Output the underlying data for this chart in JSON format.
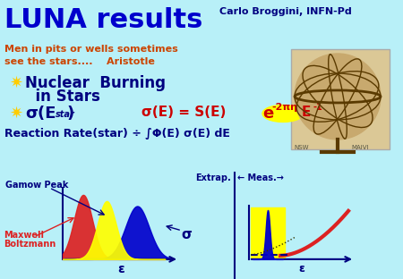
{
  "bg_color": "#b8f0f8",
  "title": "LUNA results",
  "title_color": "#0000cc",
  "subtitle1": "Men in pits or wells sometimes",
  "subtitle2": "see the stars....    Aristotle",
  "subtitle_color": "#cc4400",
  "author": "Carlo Broggini, INFN-Pd",
  "author_color": "#000080",
  "bullet_color": "#000080",
  "formula_color": "#cc0000",
  "gamow_label": "Gamow Peak",
  "maxwell_label": "Maxwell\nBoltzmann",
  "sigma_label": "σ",
  "epsilon_label": "ε",
  "extrap_label": "Extrap.",
  "meas_label": "← Meas.→",
  "star_bullet": "✷",
  "bullet_yellow": "#ffcc00",
  "red_color": "#dd2222",
  "yellow_color": "#ffff00",
  "blue_color": "#0000cc",
  "dark_blue": "#000080"
}
